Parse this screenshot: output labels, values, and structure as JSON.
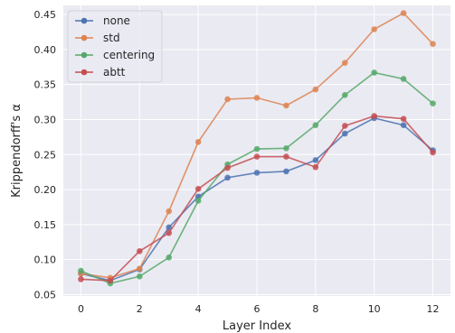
{
  "chart_data": {
    "type": "line",
    "xlabel": "Layer Index",
    "ylabel": "Krippendorff's α",
    "x": [
      0,
      1,
      2,
      3,
      4,
      5,
      6,
      7,
      8,
      9,
      10,
      11,
      12
    ],
    "xlim": [
      -0.6,
      12.6
    ],
    "ylim": [
      0.048,
      0.463
    ],
    "xticks": [
      0,
      2,
      4,
      6,
      8,
      10,
      12
    ],
    "yticks": [
      0.05,
      0.1,
      0.15,
      0.2,
      0.25,
      0.3,
      0.35,
      0.4,
      0.45
    ],
    "ytick_labels": [
      "0.05",
      "0.10",
      "0.15",
      "0.20",
      "0.25",
      "0.30",
      "0.35",
      "0.40",
      "0.45"
    ],
    "grid": true,
    "legend_position": "top-left",
    "series": [
      {
        "name": "none",
        "color": "#4c72b0",
        "values": [
          0.08,
          0.07,
          0.086,
          0.146,
          0.19,
          0.217,
          0.224,
          0.226,
          0.242,
          0.28,
          0.302,
          0.292,
          0.256
        ]
      },
      {
        "name": "std",
        "color": "#dd8452",
        "values": [
          0.08,
          0.074,
          0.087,
          0.169,
          0.268,
          0.329,
          0.331,
          0.32,
          0.343,
          0.381,
          0.429,
          0.452,
          0.408
        ]
      },
      {
        "name": "centering",
        "color": "#55a868",
        "values": [
          0.084,
          0.066,
          0.076,
          0.103,
          0.184,
          0.236,
          0.258,
          0.259,
          0.292,
          0.335,
          0.367,
          0.358,
          0.323
        ]
      },
      {
        "name": "abtt",
        "color": "#c44e52",
        "values": [
          0.072,
          0.07,
          0.112,
          0.138,
          0.201,
          0.231,
          0.247,
          0.247,
          0.232,
          0.291,
          0.305,
          0.301,
          0.253
        ]
      }
    ]
  }
}
